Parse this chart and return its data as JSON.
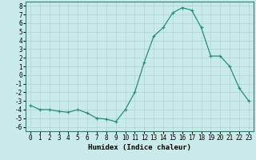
{
  "title": "",
  "xlabel": "Humidex (Indice chaleur)",
  "ylabel": "",
  "x": [
    0,
    1,
    2,
    3,
    4,
    5,
    6,
    7,
    8,
    9,
    10,
    11,
    12,
    13,
    14,
    15,
    16,
    17,
    18,
    19,
    20,
    21,
    22,
    23
  ],
  "y": [
    -3.5,
    -4.0,
    -4.0,
    -4.2,
    -4.3,
    -4.0,
    -4.4,
    -5.0,
    -5.1,
    -5.4,
    -4.0,
    -2.0,
    1.5,
    4.5,
    5.5,
    7.2,
    7.8,
    7.5,
    5.5,
    2.2,
    2.2,
    1.0,
    -1.5,
    -3.0
  ],
  "xlim": [
    -0.5,
    23.5
  ],
  "ylim": [
    -6.5,
    8.5
  ],
  "yticks": [
    -6,
    -5,
    -4,
    -3,
    -2,
    -1,
    0,
    1,
    2,
    3,
    4,
    5,
    6,
    7,
    8
  ],
  "xticks": [
    0,
    1,
    2,
    3,
    4,
    5,
    6,
    7,
    8,
    9,
    10,
    11,
    12,
    13,
    14,
    15,
    16,
    17,
    18,
    19,
    20,
    21,
    22,
    23
  ],
  "line_color": "#2e8b7a",
  "marker": "+",
  "marker_size": 3,
  "bg_color": "#c8eae8",
  "grid_color": "#aed4d0",
  "tick_fontsize": 5.5,
  "label_fontsize": 6.5
}
